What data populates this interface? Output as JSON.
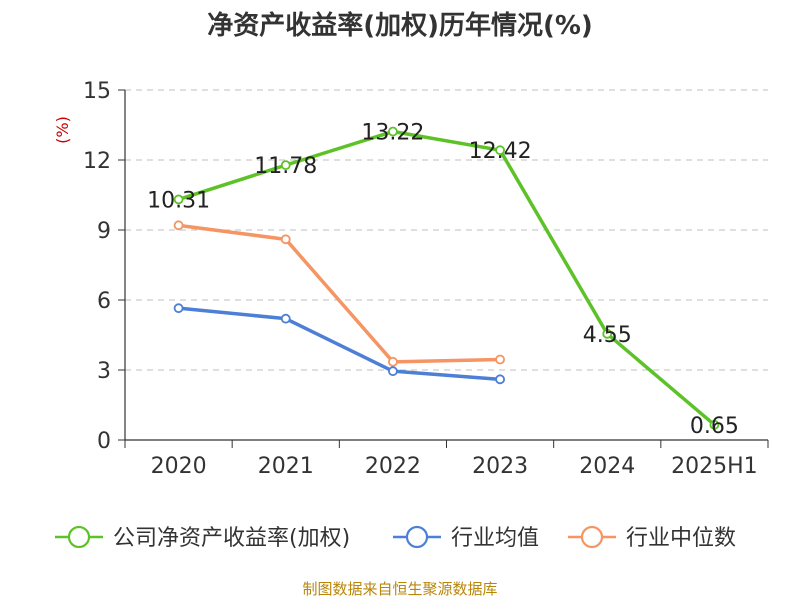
{
  "chart_data": {
    "type": "line",
    "title": "净资产收益率(加权)历年情况(%)",
    "ylabel": "(%)",
    "xlabel": "",
    "categories": [
      "2020",
      "2021",
      "2022",
      "2023",
      "2024",
      "2025H1"
    ],
    "y_ticks": [
      0,
      3,
      6,
      9,
      12,
      15
    ],
    "ylim": [
      0,
      15
    ],
    "grid": true,
    "legend_position": "bottom",
    "series": [
      {
        "name": "公司净资产收益率(加权)",
        "color": "#5dc228",
        "values": [
          10.31,
          11.78,
          13.22,
          12.42,
          4.55,
          0.65
        ],
        "labels": [
          "10.31",
          "11.78",
          "13.22",
          "12.42",
          "4.55",
          "0.65"
        ]
      },
      {
        "name": "行业均值",
        "color": "#4d7fd6",
        "values": [
          5.65,
          5.2,
          2.95,
          2.6,
          null,
          null
        ]
      },
      {
        "name": "行业中位数",
        "color": "#f59563",
        "values": [
          9.2,
          8.6,
          3.35,
          3.45,
          null,
          null
        ]
      }
    ],
    "ylabel_color": "#cc0000"
  },
  "source": "制图数据来自恒生聚源数据库"
}
